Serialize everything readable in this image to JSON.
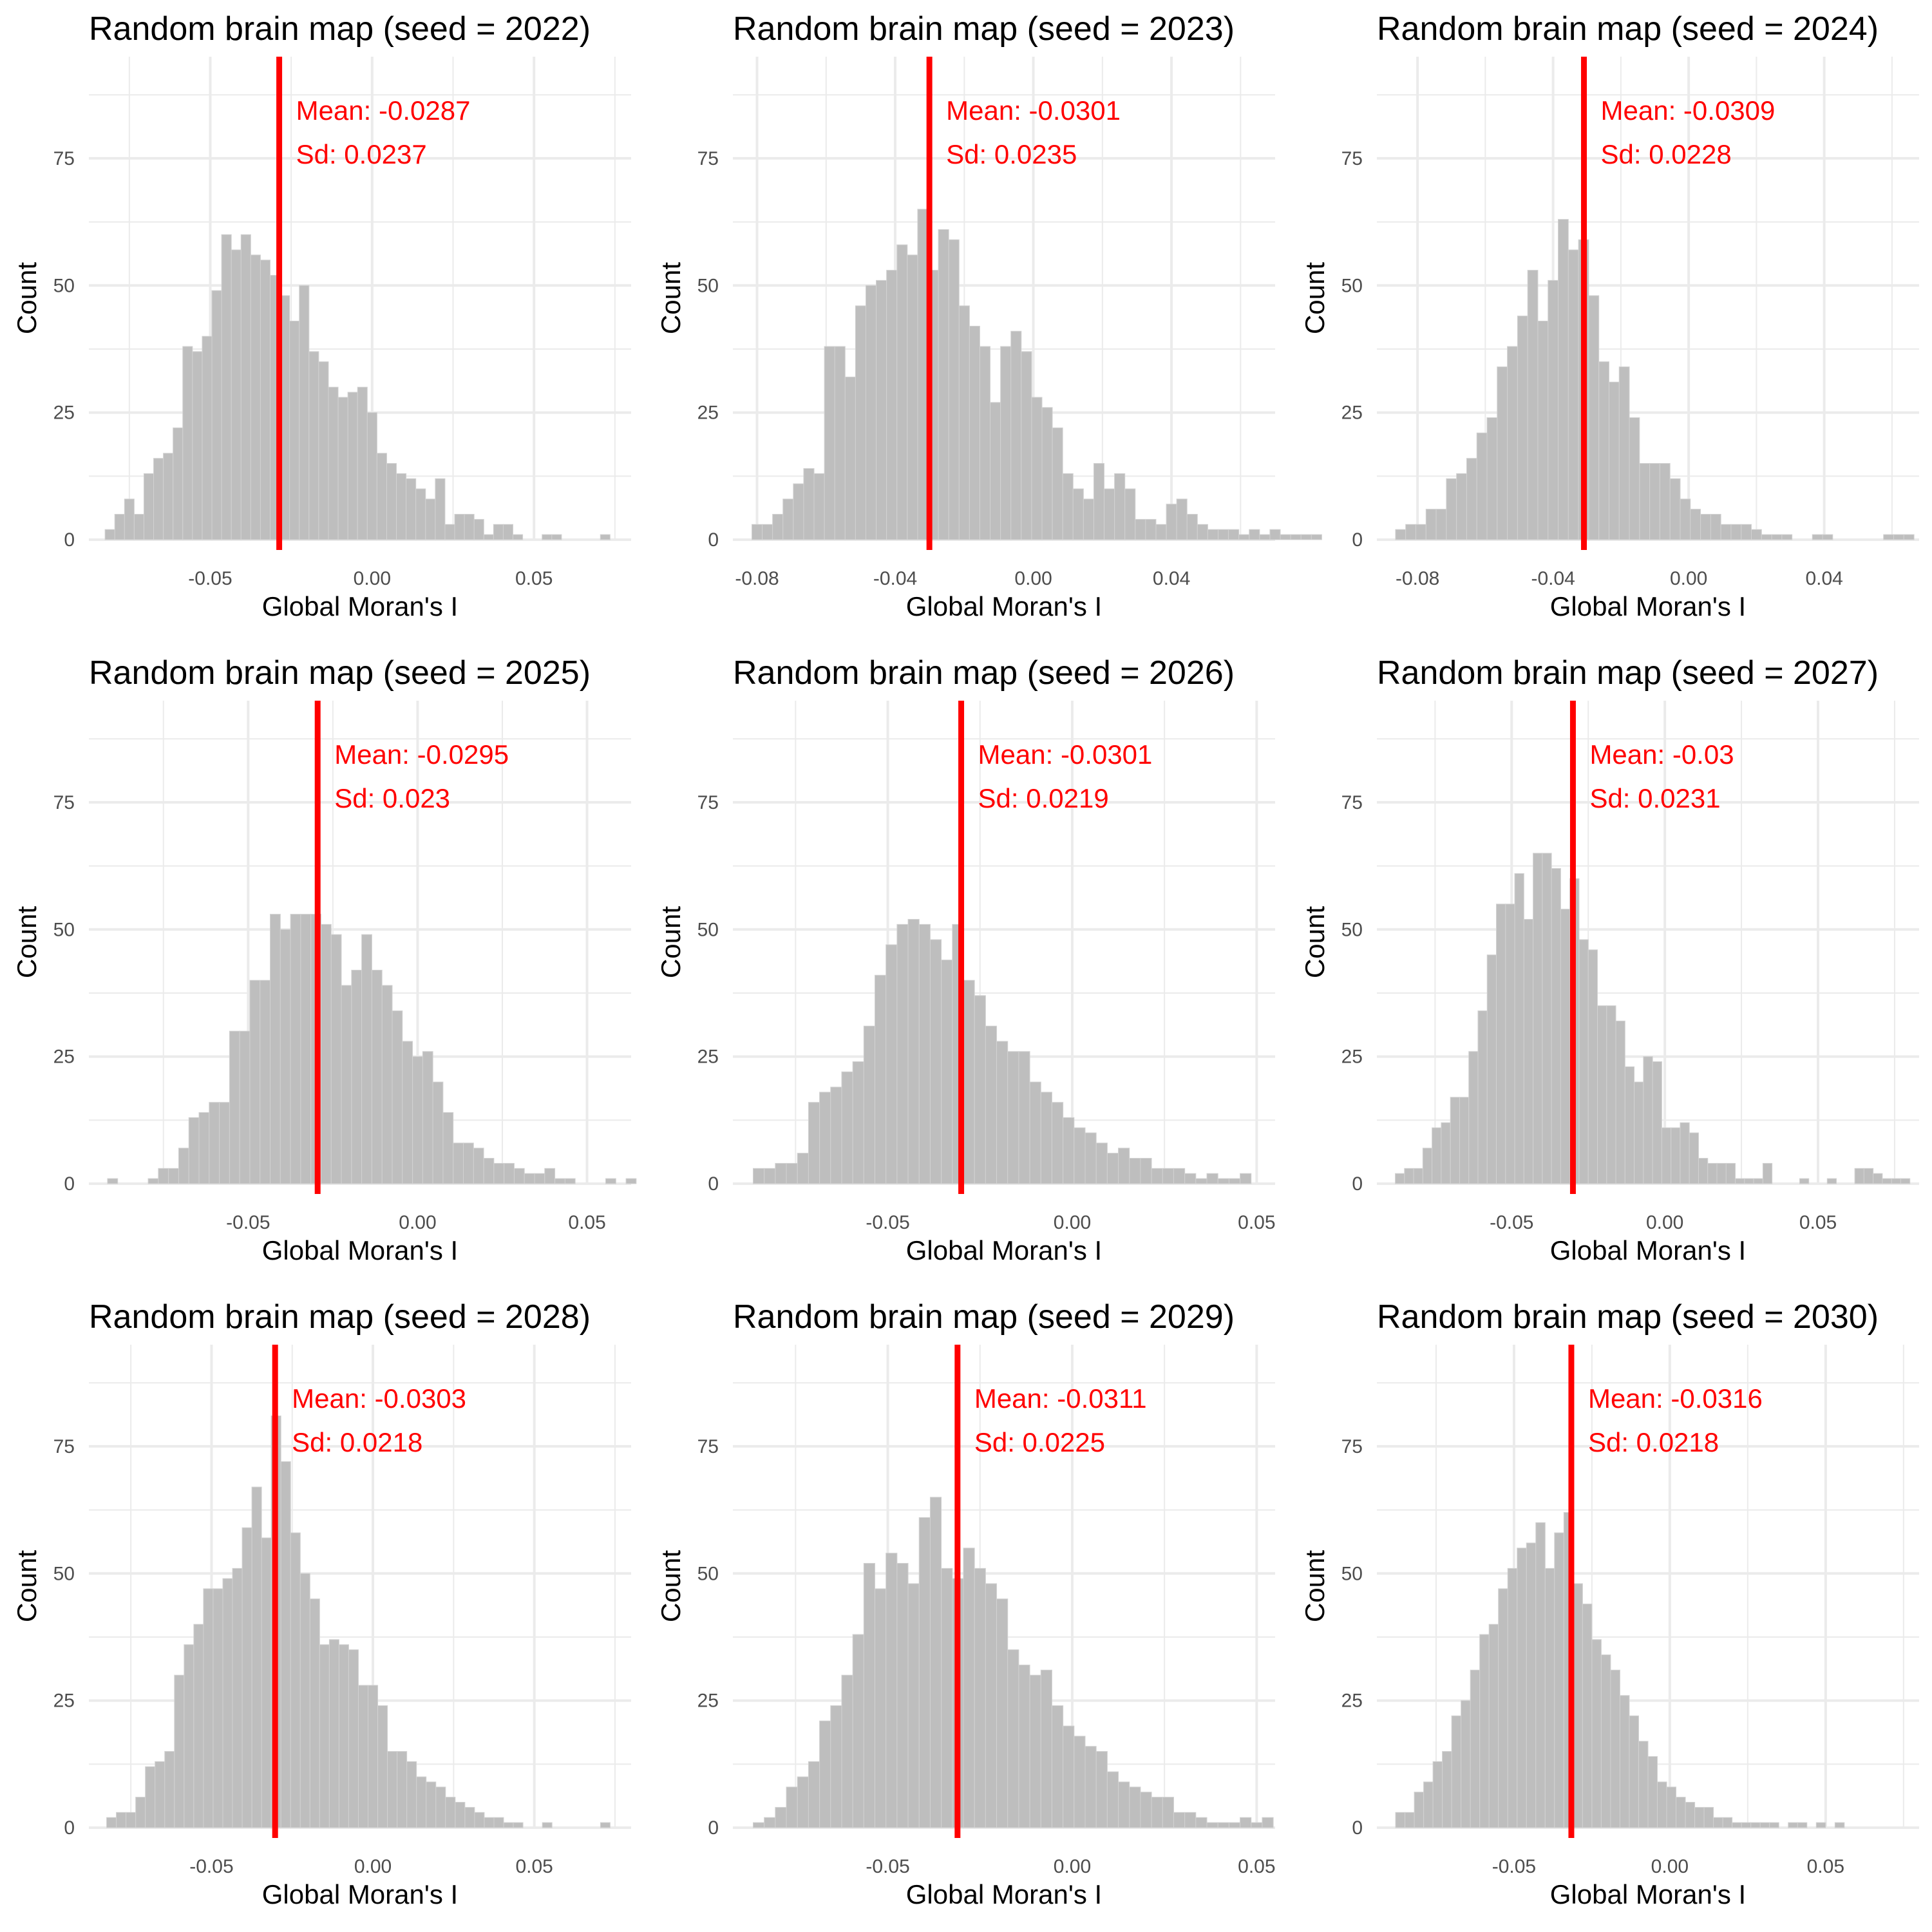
{
  "chart_data": [
    {
      "type": "bar",
      "title": "Random brain map (seed = 2022)",
      "xlabel": "Global Moran's I",
      "ylabel": "Count",
      "xlim": [
        -0.0875,
        0.08
      ],
      "ylim": [
        0,
        95
      ],
      "xticks": [
        -0.05,
        0.0,
        0.05
      ],
      "xtick_labels": [
        "-0.05",
        "0.00",
        "0.05"
      ],
      "yticks": [
        0,
        25,
        50,
        75
      ],
      "ytick_labels": [
        "0",
        "25",
        "50",
        "75"
      ],
      "grid": true,
      "bin_start": -0.0825,
      "bin_width": 0.003,
      "counts": [
        2,
        5,
        8,
        5,
        13,
        16,
        17,
        22,
        38,
        37,
        40,
        49,
        60,
        57,
        60,
        56,
        55,
        52,
        48,
        43,
        50,
        37,
        35,
        30,
        28,
        29,
        30,
        25,
        17,
        15,
        13,
        12,
        10,
        8,
        12,
        3,
        5,
        5,
        4,
        1,
        3,
        3,
        1,
        0,
        0,
        1,
        1,
        0,
        0,
        0,
        0,
        1
      ],
      "mean": -0.0287,
      "sd": 0.0237,
      "mean_label": "Mean: -0.0287",
      "sd_label": "Sd: 0.0237",
      "mean_color": "#ff0000",
      "bar_color": "#bebebe"
    },
    {
      "type": "bar",
      "title": "Random brain map (seed = 2023)",
      "xlabel": "Global Moran's I",
      "ylabel": "Count",
      "xlim": [
        -0.087,
        0.07
      ],
      "ylim": [
        0,
        95
      ],
      "xticks": [
        -0.08,
        -0.04,
        0.0,
        0.04
      ],
      "xtick_labels": [
        "-0.08",
        "-0.04",
        "0.00",
        "0.04"
      ],
      "yticks": [
        0,
        25,
        50,
        75
      ],
      "ytick_labels": [
        "0",
        "25",
        "50",
        "75"
      ],
      "grid": true,
      "bin_start": -0.0815,
      "bin_width": 0.003,
      "counts": [
        3,
        3,
        5,
        8,
        11,
        14,
        13,
        38,
        38,
        32,
        46,
        50,
        51,
        53,
        58,
        56,
        65,
        53,
        61,
        59,
        46,
        42,
        38,
        27,
        38,
        41,
        37,
        28,
        26,
        22,
        13,
        10,
        8,
        15,
        10,
        13,
        10,
        4,
        4,
        3,
        7,
        8,
        5,
        3,
        2,
        2,
        2,
        1,
        2,
        1,
        2,
        1,
        1,
        1,
        1
      ],
      "mean": -0.0301,
      "sd": 0.0235,
      "mean_label": "Mean: -0.0301",
      "sd_label": "Sd: 0.0235",
      "mean_color": "#ff0000",
      "bar_color": "#bebebe"
    },
    {
      "type": "bar",
      "title": "Random brain map (seed = 2024)",
      "xlabel": "Global Moran's I",
      "ylabel": "Count",
      "xlim": [
        -0.092,
        0.068
      ],
      "ylim": [
        0,
        95
      ],
      "xticks": [
        -0.08,
        -0.04,
        0.0,
        0.04
      ],
      "xtick_labels": [
        "-0.08",
        "-0.04",
        "0.00",
        "0.04"
      ],
      "yticks": [
        0,
        25,
        50,
        75
      ],
      "ytick_labels": [
        "0",
        "25",
        "50",
        "75"
      ],
      "grid": true,
      "bin_start": -0.0865,
      "bin_width": 0.003,
      "counts": [
        2,
        3,
        3,
        6,
        6,
        12,
        13,
        16,
        21,
        24,
        34,
        38,
        44,
        53,
        43,
        51,
        63,
        57,
        59,
        48,
        35,
        31,
        34,
        24,
        15,
        15,
        15,
        12,
        8,
        6,
        5,
        5,
        3,
        3,
        3,
        2,
        1,
        1,
        1,
        0,
        0,
        1,
        1,
        0,
        0,
        0,
        0,
        0,
        1,
        1,
        1
      ],
      "mean": -0.0309,
      "sd": 0.0228,
      "mean_label": "Mean: -0.0309",
      "sd_label": "Sd: 0.0228",
      "mean_color": "#ff0000",
      "bar_color": "#bebebe"
    },
    {
      "type": "bar",
      "title": "Random brain map (seed = 2025)",
      "xlabel": "Global Moran's I",
      "ylabel": "Count",
      "xlim": [
        -0.097,
        0.063
      ],
      "ylim": [
        0,
        95
      ],
      "xticks": [
        -0.05,
        0.0,
        0.05
      ],
      "xtick_labels": [
        "-0.05",
        "0.00",
        "0.05"
      ],
      "yticks": [
        0,
        25,
        50,
        75
      ],
      "ytick_labels": [
        "0",
        "25",
        "50",
        "75"
      ],
      "grid": true,
      "bin_start": -0.0915,
      "bin_width": 0.003,
      "counts": [
        1,
        0,
        0,
        0,
        1,
        3,
        3,
        7,
        13,
        14,
        16,
        16,
        30,
        30,
        40,
        40,
        53,
        50,
        53,
        53,
        53,
        51,
        49,
        39,
        42,
        49,
        42,
        39,
        34,
        28,
        25,
        26,
        20,
        14,
        8,
        8,
        7,
        5,
        4,
        4,
        3,
        2,
        2,
        3,
        1,
        1,
        0,
        0,
        0,
        1,
        0,
        1
      ],
      "mean": -0.0295,
      "sd": 0.023,
      "mean_label": "Mean: -0.0295",
      "sd_label": "Sd: 0.023",
      "mean_color": "#ff0000",
      "bar_color": "#bebebe"
    },
    {
      "type": "bar",
      "title": "Random brain map (seed = 2026)",
      "xlabel": "Global Moran's I",
      "ylabel": "Count",
      "xlim": [
        -0.092,
        0.055
      ],
      "ylim": [
        0,
        95
      ],
      "xticks": [
        -0.05,
        0.0,
        0.05
      ],
      "xtick_labels": [
        "-0.05",
        "0.00",
        "0.05"
      ],
      "yticks": [
        0,
        25,
        50,
        75
      ],
      "ytick_labels": [
        "0",
        "25",
        "50",
        "75"
      ],
      "grid": true,
      "bin_start": -0.0865,
      "bin_width": 0.003,
      "counts": [
        3,
        3,
        4,
        4,
        6,
        16,
        18,
        19,
        22,
        24,
        31,
        41,
        47,
        51,
        52,
        51,
        48,
        44,
        51,
        40,
        37,
        31,
        28,
        26,
        26,
        20,
        18,
        16,
        13,
        11,
        10,
        8,
        6,
        7,
        5,
        5,
        3,
        3,
        3,
        2,
        1,
        2,
        1,
        1,
        2
      ],
      "mean": -0.0301,
      "sd": 0.0219,
      "mean_label": "Mean: -0.0301",
      "sd_label": "Sd: 0.0219",
      "mean_color": "#ff0000",
      "bar_color": "#bebebe"
    },
    {
      "type": "bar",
      "title": "Random brain map (seed = 2027)",
      "xlabel": "Global Moran's I",
      "ylabel": "Count",
      "xlim": [
        -0.094,
        0.083
      ],
      "ylim": [
        0,
        95
      ],
      "xticks": [
        -0.05,
        0.0,
        0.05
      ],
      "xtick_labels": [
        "-0.05",
        "0.00",
        "0.05"
      ],
      "yticks": [
        0,
        25,
        50,
        75
      ],
      "ytick_labels": [
        "0",
        "25",
        "50",
        "75"
      ],
      "grid": true,
      "bin_start": -0.088,
      "bin_width": 0.003,
      "counts": [
        2,
        3,
        3,
        7,
        11,
        12,
        17,
        17,
        26,
        34,
        45,
        55,
        55,
        61,
        52,
        65,
        65,
        62,
        54,
        60,
        48,
        46,
        35,
        35,
        32,
        23,
        20,
        25,
        24,
        11,
        11,
        12,
        10,
        5,
        4,
        4,
        4,
        1,
        1,
        1,
        4,
        0,
        0,
        0,
        1,
        0,
        0,
        1,
        0,
        0,
        3,
        3,
        2,
        1,
        1,
        1
      ],
      "mean": -0.03,
      "sd": 0.0231,
      "mean_label": "Mean: -0.03",
      "sd_label": "Sd: 0.0231",
      "mean_color": "#ff0000",
      "bar_color": "#bebebe"
    },
    {
      "type": "bar",
      "title": "Random brain map (seed = 2028)",
      "xlabel": "Global Moran's I",
      "ylabel": "Count",
      "xlim": [
        -0.088,
        0.08
      ],
      "ylim": [
        0,
        95
      ],
      "xticks": [
        -0.05,
        0.0,
        0.05
      ],
      "xtick_labels": [
        "-0.05",
        "0.00",
        "0.05"
      ],
      "yticks": [
        0,
        25,
        50,
        75
      ],
      "ytick_labels": [
        "0",
        "25",
        "50",
        "75"
      ],
      "grid": true,
      "bin_start": -0.0825,
      "bin_width": 0.003,
      "counts": [
        2,
        3,
        3,
        6,
        12,
        13,
        15,
        30,
        36,
        40,
        47,
        47,
        49,
        51,
        59,
        67,
        57,
        81,
        72,
        58,
        50,
        45,
        36,
        37,
        36,
        35,
        28,
        28,
        24,
        15,
        15,
        13,
        10,
        9,
        8,
        6,
        5,
        4,
        3,
        2,
        2,
        1,
        1,
        0,
        0,
        1,
        0,
        0,
        0,
        0,
        0,
        1
      ],
      "mean": -0.0303,
      "sd": 0.0218,
      "mean_label": "Mean: -0.0303",
      "sd_label": "Sd: 0.0218",
      "mean_color": "#ff0000",
      "bar_color": "#bebebe"
    },
    {
      "type": "bar",
      "title": "Random brain map (seed = 2029)",
      "xlabel": "Global Moran's I",
      "ylabel": "Count",
      "xlim": [
        -0.092,
        0.055
      ],
      "ylim": [
        0,
        95
      ],
      "xticks": [
        -0.05,
        0.0,
        0.05
      ],
      "xtick_labels": [
        "-0.05",
        "0.00",
        "0.05"
      ],
      "yticks": [
        0,
        25,
        50,
        75
      ],
      "ytick_labels": [
        "0",
        "25",
        "50",
        "75"
      ],
      "grid": true,
      "bin_start": -0.0865,
      "bin_width": 0.003,
      "counts": [
        1,
        2,
        4,
        8,
        10,
        13,
        21,
        24,
        30,
        38,
        52,
        47,
        54,
        52,
        48,
        61,
        65,
        51,
        49,
        55,
        51,
        48,
        45,
        35,
        32,
        30,
        31,
        24,
        20,
        18,
        16,
        15,
        11,
        9,
        8,
        7,
        6,
        6,
        3,
        3,
        2,
        1,
        1,
        1,
        2,
        1,
        2
      ],
      "mean": -0.0311,
      "sd": 0.0225,
      "mean_label": "Mean: -0.0311",
      "sd_label": "Sd: 0.0225",
      "mean_color": "#ff0000",
      "bar_color": "#bebebe"
    },
    {
      "type": "bar",
      "title": "Random brain map (seed = 2030)",
      "xlabel": "Global Moran's I",
      "ylabel": "Count",
      "xlim": [
        -0.094,
        0.08
      ],
      "ylim": [
        0,
        95
      ],
      "xticks": [
        -0.05,
        0.0,
        0.05
      ],
      "xtick_labels": [
        "-0.05",
        "0.00",
        "0.05"
      ],
      "yticks": [
        0,
        25,
        50,
        75
      ],
      "ytick_labels": [
        "0",
        "25",
        "50",
        "75"
      ],
      "grid": true,
      "bin_start": -0.088,
      "bin_width": 0.003,
      "counts": [
        3,
        3,
        7,
        9,
        13,
        15,
        22,
        25,
        31,
        38,
        40,
        47,
        51,
        55,
        56,
        60,
        51,
        58,
        62,
        48,
        44,
        37,
        34,
        31,
        26,
        22,
        17,
        14,
        9,
        8,
        6,
        5,
        4,
        4,
        2,
        2,
        1,
        1,
        1,
        1,
        1,
        0,
        1,
        1,
        0,
        1,
        0,
        1
      ],
      "mean": -0.0316,
      "sd": 0.0218,
      "mean_label": "Mean: -0.0316",
      "sd_label": "Sd: 0.0218",
      "mean_color": "#ff0000",
      "bar_color": "#bebebe"
    }
  ]
}
